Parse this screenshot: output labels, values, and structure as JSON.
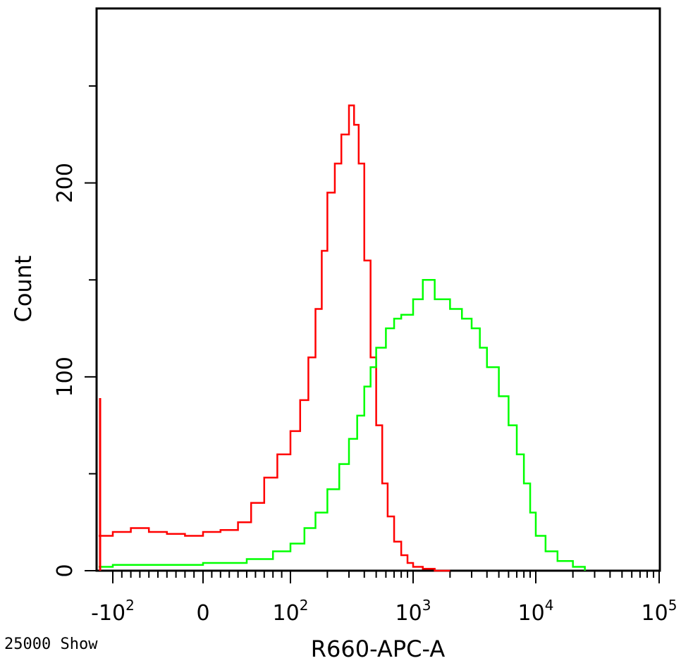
{
  "chart_data": {
    "type": "line",
    "xlabel": "R660-APC-A",
    "ylabel": "Count",
    "footer": "25000 Show",
    "x_scale": "biexponential",
    "ylim": [
      0,
      290
    ],
    "y_ticks": [
      {
        "value": 0,
        "label": "0"
      },
      {
        "value": 100,
        "label": "100"
      },
      {
        "value": 200,
        "label": "200"
      }
    ],
    "x_ticks": [
      {
        "value": -100,
        "base": "-10",
        "exp": "2"
      },
      {
        "value": 0,
        "base": "0",
        "exp": ""
      },
      {
        "value": 100,
        "base": "10",
        "exp": "2"
      },
      {
        "value": 1000,
        "base": "10",
        "exp": "3"
      },
      {
        "value": 10000,
        "base": "10",
        "exp": "4"
      },
      {
        "value": 100000,
        "base": "10",
        "exp": "5"
      }
    ],
    "grid": false,
    "series": [
      {
        "color": "#ff0000",
        "x": [
          -120,
          -100,
          -80,
          -60,
          -40,
          -20,
          0,
          20,
          40,
          55,
          70,
          85,
          100,
          120,
          140,
          160,
          180,
          200,
          230,
          260,
          300,
          330,
          360,
          400,
          450,
          500,
          560,
          620,
          700,
          800,
          900,
          1000,
          1200,
          1500,
          1800,
          2000
        ],
        "y": [
          18,
          20,
          22,
          20,
          19,
          18,
          20,
          21,
          25,
          35,
          48,
          60,
          72,
          88,
          110,
          135,
          165,
          195,
          210,
          225,
          240,
          230,
          210,
          160,
          110,
          75,
          45,
          28,
          15,
          8,
          4,
          2,
          1,
          0,
          0,
          0
        ]
      },
      {
        "color": "#00ff00",
        "x": [
          -120,
          -100,
          -50,
          0,
          50,
          80,
          100,
          130,
          160,
          200,
          250,
          300,
          350,
          400,
          450,
          500,
          600,
          700,
          800,
          1000,
          1200,
          1500,
          2000,
          2500,
          3000,
          3500,
          4000,
          5000,
          6000,
          7000,
          8000,
          9000,
          10000,
          12000,
          15000,
          20000,
          25000
        ],
        "y": [
          2,
          3,
          3,
          4,
          6,
          10,
          14,
          22,
          30,
          42,
          55,
          68,
          80,
          95,
          105,
          115,
          125,
          130,
          132,
          140,
          150,
          140,
          135,
          130,
          125,
          115,
          105,
          90,
          75,
          60,
          45,
          30,
          18,
          10,
          5,
          2,
          0
        ]
      }
    ]
  }
}
